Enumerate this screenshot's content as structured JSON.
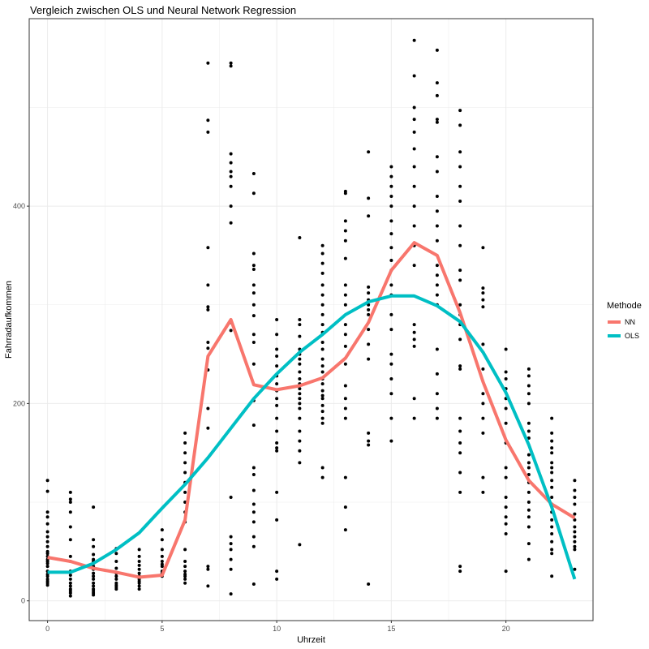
{
  "chart_data": {
    "type": "scatter",
    "title": "Vergleich zwischen OLS und Neural Network Regression",
    "xlabel": "Uhrzeit",
    "ylabel": "Fahrradaufkommen",
    "xlim": [
      -0.8,
      23.8
    ],
    "ylim": [
      -20,
      590
    ],
    "x_ticks": [
      0,
      5,
      10,
      15,
      20
    ],
    "y_ticks": [
      0,
      200,
      400
    ],
    "grid": true,
    "legend": {
      "title": "Methode",
      "position": "right"
    },
    "points_by_hour": {
      "0": [
        122,
        111,
        90,
        85,
        78,
        70,
        65,
        60,
        55,
        50,
        48,
        45,
        42,
        40,
        38,
        35,
        30,
        27,
        25,
        22,
        20,
        18,
        16
      ],
      "1": [
        110,
        103,
        100,
        90,
        75,
        62,
        45,
        40,
        30,
        26,
        22,
        18,
        15,
        12,
        10,
        8,
        5
      ],
      "2": [
        95,
        62,
        55,
        47,
        42,
        40,
        38,
        35,
        32,
        28,
        25,
        22,
        18,
        15,
        12,
        10,
        8,
        6
      ],
      "3": [
        53,
        48,
        40,
        33,
        28,
        25,
        22,
        18,
        16,
        14,
        12
      ],
      "4": [
        52,
        45,
        40,
        36,
        32,
        28,
        25,
        22,
        20,
        18,
        15,
        12
      ],
      "5": [
        72,
        62,
        52,
        45,
        40,
        37,
        35,
        30,
        28,
        27,
        25
      ],
      "6": [
        170,
        160,
        150,
        140,
        130,
        120,
        110,
        100,
        90,
        80,
        52,
        40,
        35,
        30,
        27,
        25,
        22,
        18
      ],
      "7": [
        545,
        487,
        475,
        358,
        320,
        298,
        295,
        262,
        256,
        234,
        195,
        175,
        35,
        32,
        15
      ],
      "8": [
        545,
        542,
        453,
        444,
        435,
        430,
        420,
        400,
        383,
        282,
        274,
        105,
        65,
        58,
        52,
        42,
        32,
        7
      ],
      "9": [
        433,
        413,
        352,
        340,
        336,
        320,
        312,
        300,
        289,
        270,
        262,
        240,
        203,
        178,
        135,
        128,
        112,
        98,
        90,
        80,
        65,
        55,
        17
      ],
      "10": [
        285,
        270,
        255,
        248,
        238,
        228,
        220,
        213,
        205,
        198,
        185,
        172,
        160,
        155,
        152,
        110,
        82,
        30,
        22
      ],
      "11": [
        368,
        285,
        280,
        268,
        255,
        250,
        245,
        240,
        232,
        225,
        220,
        215,
        210,
        205,
        200,
        195,
        185,
        172,
        162,
        152,
        140,
        57
      ],
      "12": [
        360,
        352,
        342,
        332,
        320,
        310,
        300,
        290,
        280,
        272,
        262,
        255,
        245,
        238,
        232,
        225,
        220,
        213,
        208,
        205,
        198,
        192,
        185,
        180,
        135,
        125
      ],
      "13": [
        415,
        413,
        385,
        375,
        365,
        347,
        320,
        310,
        300,
        280,
        270,
        258,
        240,
        218,
        205,
        195,
        185,
        125,
        95,
        72
      ],
      "14": [
        455,
        408,
        390,
        318,
        312,
        305,
        300,
        295,
        290,
        275,
        260,
        245,
        170,
        162,
        158,
        17
      ],
      "15": [
        440,
        430,
        420,
        410,
        400,
        385,
        372,
        358,
        345,
        335,
        320,
        310,
        290,
        275,
        250,
        240,
        225,
        210,
        185,
        162
      ],
      "16": [
        568,
        532,
        500,
        488,
        475,
        458,
        440,
        420,
        400,
        380,
        360,
        340,
        280,
        272,
        265,
        258,
        205,
        185
      ],
      "17": [
        558,
        525,
        512,
        488,
        485,
        450,
        435,
        410,
        395,
        380,
        365,
        340,
        330,
        320,
        310,
        300,
        255,
        230,
        210,
        195,
        185
      ],
      "18": [
        497,
        482,
        455,
        440,
        420,
        405,
        380,
        360,
        335,
        325,
        300,
        290,
        280,
        265,
        238,
        235,
        185,
        172,
        160,
        150,
        130,
        110,
        35,
        30
      ],
      "19": [
        358,
        317,
        312,
        305,
        298,
        260,
        235,
        210,
        200,
        185,
        170,
        125,
        110
      ],
      "20": [
        255,
        232,
        225,
        215,
        205,
        195,
        180,
        160,
        135,
        125,
        105,
        95,
        85,
        78,
        68,
        30
      ],
      "21": [
        235,
        228,
        218,
        210,
        200,
        180,
        172,
        165,
        148,
        140,
        135,
        128,
        120,
        110,
        100,
        92,
        85,
        75,
        58,
        42
      ],
      "22": [
        185,
        170,
        162,
        155,
        150,
        140,
        135,
        130,
        122,
        115,
        105,
        98,
        90,
        82,
        75,
        68,
        60,
        52,
        48,
        25
      ],
      "23": [
        122,
        112,
        105,
        98,
        88,
        82,
        75,
        70,
        65,
        60,
        55,
        52,
        32
      ]
    },
    "series": [
      {
        "name": "NN",
        "color": "#F8766D",
        "x": [
          0,
          1,
          2,
          3,
          4,
          5,
          6,
          7,
          8,
          9,
          10,
          11,
          12,
          13,
          14,
          15,
          16,
          17,
          18,
          19,
          20,
          21,
          22,
          23
        ],
        "values": [
          44,
          40,
          33,
          29,
          24,
          26,
          82,
          248,
          285,
          219,
          214,
          218,
          226,
          246,
          282,
          335,
          363,
          350,
          292,
          222,
          163,
          122,
          98,
          84
        ]
      },
      {
        "name": "OLS",
        "color": "#00BFC4",
        "x": [
          0,
          1,
          2,
          3,
          4,
          5,
          6,
          7,
          8,
          9,
          10,
          11,
          12,
          13,
          14,
          15,
          16,
          17,
          18,
          19,
          20,
          21,
          22,
          23
        ],
        "values": [
          29,
          29,
          38,
          52,
          69,
          94,
          118,
          145,
          175,
          205,
          230,
          252,
          270,
          290,
          303,
          309,
          309,
          299,
          283,
          252,
          211,
          158,
          95,
          22
        ]
      }
    ]
  }
}
